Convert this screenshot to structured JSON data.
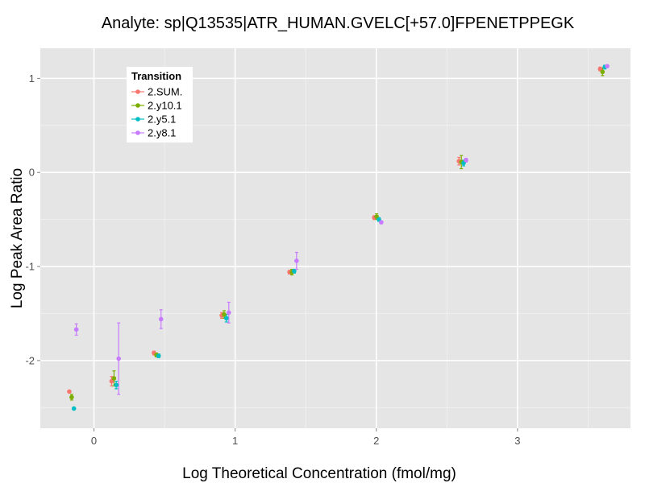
{
  "chart_data": {
    "type": "scatter",
    "title": "Analyte: sp|Q13535|ATR_HUMAN.GVELC[+57.0]FPENETPPEGK",
    "xlabel": "Log Theoretical Concentration (fmol/mg)",
    "ylabel": "Log Peak Area Ratio",
    "xlim": [
      -0.38,
      3.8
    ],
    "ylim": [
      -2.72,
      1.32
    ],
    "xticks": [
      0,
      1,
      2,
      3
    ],
    "yticks": [
      -2,
      -1,
      0,
      1
    ],
    "grid": true,
    "legend": {
      "title": "Transition",
      "position": "top-left"
    },
    "series": [
      {
        "name": "2.SUM.",
        "color": "#F8766D",
        "x": [
          -0.175,
          0.125,
          0.425,
          0.905,
          1.385,
          1.985,
          2.585,
          3.585
        ],
        "y": [
          -2.33,
          -2.22,
          -1.92,
          -1.52,
          -1.06,
          -0.48,
          0.12,
          1.1
        ],
        "err": [
          0.0,
          0.05,
          0.02,
          0.03,
          0.02,
          0.02,
          0.04,
          0.02
        ]
      },
      {
        "name": "2.y10.1",
        "color": "#7CAE00",
        "x": [
          -0.158,
          0.142,
          0.442,
          0.922,
          1.402,
          2.002,
          2.602,
          3.602
        ],
        "y": [
          -2.39,
          -2.19,
          -1.94,
          -1.51,
          -1.06,
          -0.47,
          0.11,
          1.07
        ],
        "err": [
          0.03,
          0.08,
          0.02,
          0.04,
          0.03,
          0.03,
          0.07,
          0.04
        ]
      },
      {
        "name": "2.y5.1",
        "color": "#00BFC4",
        "x": [
          -0.142,
          0.158,
          0.458,
          0.938,
          1.418,
          2.018,
          2.618,
          3.618
        ],
        "y": [
          -2.51,
          -2.26,
          -1.95,
          -1.55,
          -1.05,
          -0.5,
          0.1,
          1.12
        ],
        "err": [
          0.0,
          0.04,
          0.02,
          0.04,
          0.02,
          0.02,
          0.03,
          0.02
        ]
      },
      {
        "name": "2.y8.1",
        "color": "#C77CFF",
        "x": [
          -0.125,
          0.175,
          0.475,
          0.955,
          1.435,
          2.035,
          2.635,
          3.635
        ],
        "y": [
          -1.67,
          -1.98,
          -1.56,
          -1.49,
          -0.94,
          -0.53,
          0.13,
          1.13
        ],
        "err": [
          0.06,
          0.38,
          0.1,
          0.11,
          0.09,
          0.01,
          0.02,
          0.01
        ]
      }
    ]
  }
}
